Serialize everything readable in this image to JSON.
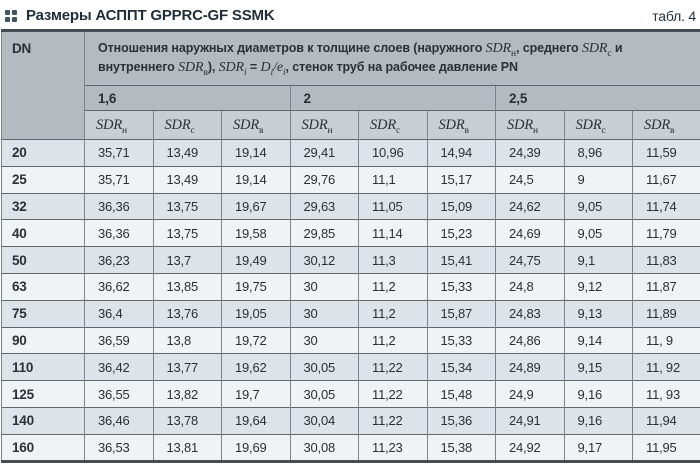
{
  "header": {
    "title": "Размеры АСППТ GPPRC-GF SSMK",
    "table_label": "табл. 4",
    "marker_icon": "four-squares-icon"
  },
  "colors": {
    "header_bg": "#b5bac0",
    "subheader_bg": "#c9ced3",
    "row_odd_bg": "#dde3e8",
    "row_even_bg": "#f0f3f5",
    "title_color": "#1f2d3a",
    "border_dark": "#454c52",
    "grid_line": "#7d858c"
  },
  "table": {
    "dn_header": "DN",
    "description": {
      "seg1": "Отношения наружных диаметров к толщине слоев (наружного ",
      "sdr": "SDR",
      "sub_n": "н",
      "seg2": ", среднего ",
      "sub_c": "с",
      "seg3": " и внутреннего ",
      "sub_v": "в",
      "seg4": "), ",
      "sub_i": "i",
      "eq": " = ",
      "var_d": "D",
      "slash": "/",
      "var_e": "e",
      "seg5": ", стенок труб на рабочее давление PN"
    },
    "pn_groups": [
      "1,6",
      "2",
      "2,5"
    ],
    "sdr_cols": [
      {
        "base": "SDR",
        "sub": "н"
      },
      {
        "base": "SDR",
        "sub": "с"
      },
      {
        "base": "SDR",
        "sub": "в"
      },
      {
        "base": "SDR",
        "sub": "н"
      },
      {
        "base": "SDR",
        "sub": "с"
      },
      {
        "base": "SDR",
        "sub": "в"
      },
      {
        "base": "SDR",
        "sub": "н"
      },
      {
        "base": "SDR",
        "sub": "с"
      },
      {
        "base": "SDR",
        "sub": "в"
      }
    ],
    "rows": [
      {
        "dn": "20",
        "values": [
          "35,71",
          "13,49",
          "19,14",
          "29,41",
          "10,96",
          "14,94",
          "24,39",
          "8,96",
          "11,59"
        ]
      },
      {
        "dn": "25",
        "values": [
          "35,71",
          "13,49",
          "19,14",
          "29,76",
          "11,1",
          "15,17",
          "24,5",
          "9",
          "11,67"
        ]
      },
      {
        "dn": "32",
        "values": [
          "36,36",
          "13,75",
          "19,67",
          "29,63",
          "11,05",
          "15,09",
          "24,62",
          "9,05",
          "11,74"
        ]
      },
      {
        "dn": "40",
        "values": [
          "36,36",
          "13,75",
          "19,58",
          "29,85",
          "11,14",
          "15,23",
          "24,69",
          "9,05",
          "11,79"
        ]
      },
      {
        "dn": "50",
        "values": [
          "36,23",
          "13,7",
          "19,49",
          "30,12",
          "11,3",
          "15,41",
          "24,75",
          "9,1",
          "11,83"
        ]
      },
      {
        "dn": "63",
        "values": [
          "36,62",
          "13,85",
          "19,75",
          "30",
          "11,2",
          "15,33",
          "24,8",
          "9,12",
          "11,87"
        ]
      },
      {
        "dn": "75",
        "values": [
          "36,4",
          "13,76",
          "19,05",
          "30",
          "11,2",
          "15,87",
          "24,83",
          "9,13",
          "11,89"
        ]
      },
      {
        "dn": "90",
        "values": [
          "36,59",
          "13,8",
          "19,72",
          "30",
          "11,2",
          "15,33",
          "24,86",
          "9,14",
          "11, 9"
        ]
      },
      {
        "dn": "110",
        "values": [
          "36,42",
          "13,77",
          "19,62",
          "30,05",
          "11,22",
          "15,34",
          "24,89",
          "9,15",
          "11, 92"
        ]
      },
      {
        "dn": "125",
        "values": [
          "36,55",
          "13,82",
          "19,7",
          "30,05",
          "11,22",
          "15,48",
          "24,9",
          "9,16",
          "11, 93"
        ]
      },
      {
        "dn": "140",
        "values": [
          "36,46",
          "13,78",
          "19,64",
          "30,04",
          "11,22",
          "15,36",
          "24,91",
          "9,16",
          "11,94"
        ]
      },
      {
        "dn": "160",
        "values": [
          "36,53",
          "13,81",
          "19,69",
          "30,08",
          "11,23",
          "15,38",
          "24,92",
          "9,17",
          "11,95"
        ]
      }
    ]
  }
}
